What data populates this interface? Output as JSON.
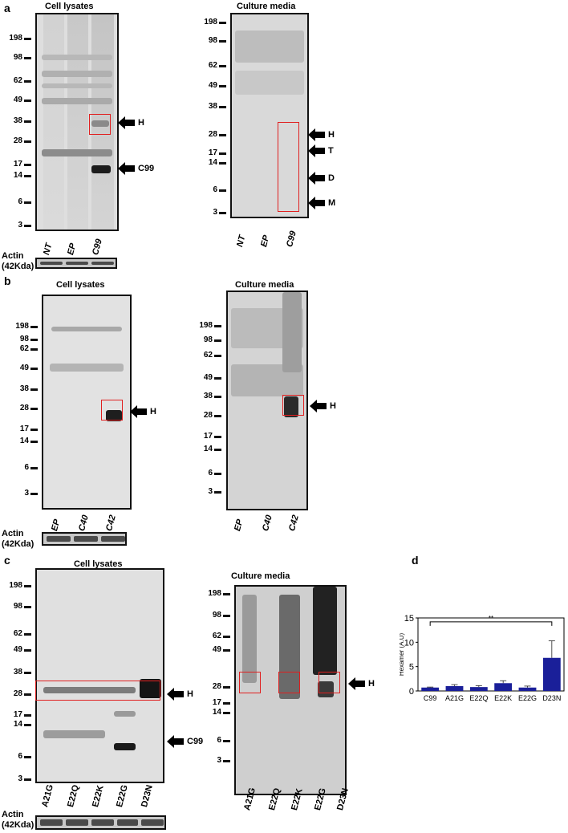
{
  "panels": {
    "a": {
      "letter": "a",
      "lysate_title": "Cell lysates",
      "media_title": "Culture media",
      "lysate_markers": [
        "198",
        "98",
        "62",
        "49",
        "38",
        "28",
        "17",
        "14",
        "6",
        "3"
      ],
      "media_markers": [
        "198",
        "98",
        "62",
        "49",
        "38",
        "28",
        "17",
        "14",
        "6",
        "3"
      ],
      "lanes": [
        "NT",
        "EP",
        "C99"
      ],
      "lysate_arrows": [
        "H",
        "C99"
      ],
      "media_arrows": [
        "H",
        "T",
        "D",
        "M"
      ],
      "actin_label": [
        "Actin",
        "(42Kda)"
      ]
    },
    "b": {
      "letter": "b",
      "lysate_title": "Cell lysates",
      "media_title": "Culture media",
      "lysate_markers": [
        "198",
        "98",
        "62",
        "49",
        "38",
        "28",
        "17",
        "14",
        "6",
        "3"
      ],
      "media_markers": [
        "198",
        "98",
        "62",
        "49",
        "38",
        "28",
        "17",
        "14",
        "6",
        "3"
      ],
      "lanes": [
        "EP",
        "C40",
        "C42"
      ],
      "lysate_arrows": [
        "H"
      ],
      "media_arrows": [
        "H"
      ],
      "actin_label": [
        "Actin",
        "(42Kda)"
      ]
    },
    "c": {
      "letter": "c",
      "lysate_title": "Cell lysates",
      "media_title": "Culture media",
      "lysate_markers": [
        "198",
        "98",
        "62",
        "49",
        "38",
        "28",
        "17",
        "14",
        "6",
        "3"
      ],
      "media_markers": [
        "198",
        "98",
        "62",
        "49",
        "28",
        "17",
        "14",
        "6",
        "3"
      ],
      "lanes": [
        "A21G",
        "E22Q",
        "E22K",
        "E22G",
        "D23N"
      ],
      "lysate_arrows": [
        "H",
        "C99"
      ],
      "media_arrows": [
        "H"
      ],
      "actin_label": [
        "Actin",
        "(42Kda)"
      ]
    },
    "d": {
      "letter": "d"
    }
  },
  "chart_data": {
    "type": "bar",
    "categories": [
      "C99",
      "A21G",
      "E22Q",
      "E22K",
      "E22G",
      "D23N"
    ],
    "values": [
      0.7,
      1.0,
      0.8,
      1.6,
      0.7,
      6.8
    ],
    "errors": [
      0.1,
      0.3,
      0.3,
      0.5,
      0.3,
      3.5
    ],
    "ylabel": "Hexamer (A.U)",
    "ylim": [
      0,
      15
    ],
    "yticks": [
      "0",
      "5",
      "10",
      "15"
    ],
    "significance": "**",
    "bar_color": "#1a1f99"
  }
}
